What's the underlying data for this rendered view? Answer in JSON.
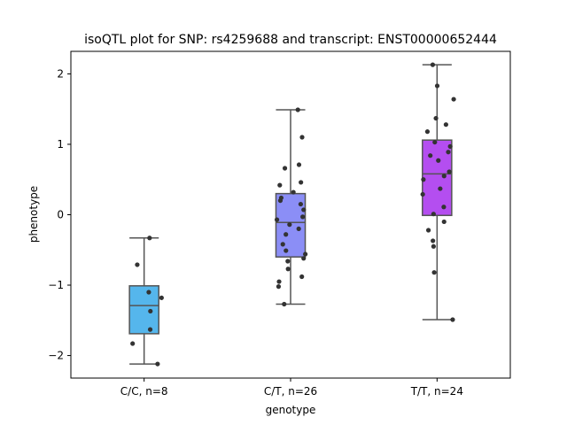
{
  "chart_data": {
    "type": "box",
    "title": "isoQTL plot for SNP: rs4259688 and transcript: ENST00000652444",
    "xlabel": "genotype",
    "ylabel": "phenotype",
    "ylim": [
      -2.32,
      2.32
    ],
    "yticks": [
      -2,
      -1,
      0,
      1,
      2
    ],
    "ytick_labels": [
      "−2",
      "−1",
      "0",
      "1",
      "2"
    ],
    "grid": false,
    "groups": [
      {
        "label": "C/C, n=8",
        "color": "#55b6ec",
        "q1": -1.69,
        "median": -1.29,
        "q3": -1.01,
        "whisker_low": -2.12,
        "whisker_high": -0.33,
        "points": [
          -0.33,
          -0.71,
          -1.1,
          -1.18,
          -1.37,
          -1.63,
          -1.83,
          -2.12
        ]
      },
      {
        "label": "C/T, n=26",
        "color": "#8b8ef6",
        "q1": -0.6,
        "median": -0.11,
        "q3": 0.3,
        "whisker_low": -1.27,
        "whisker_high": 1.49,
        "points": [
          1.49,
          1.1,
          0.71,
          0.66,
          0.46,
          0.42,
          0.32,
          0.24,
          0.2,
          0.15,
          0.07,
          -0.03,
          -0.07,
          -0.14,
          -0.2,
          -0.28,
          -0.42,
          -0.51,
          -0.56,
          -0.62,
          -0.66,
          -0.77,
          -0.88,
          -0.95,
          -1.02,
          -1.27
        ]
      },
      {
        "label": "T/T, n=24",
        "color": "#b44ef0",
        "q1": -0.01,
        "median": 0.58,
        "q3": 1.06,
        "whisker_low": -1.49,
        "whisker_high": 2.13,
        "points": [
          2.13,
          1.83,
          1.64,
          1.37,
          1.28,
          1.18,
          1.03,
          0.97,
          0.89,
          0.84,
          0.77,
          0.61,
          0.55,
          0.5,
          0.37,
          0.29,
          0.11,
          0.01,
          -0.1,
          -0.22,
          -0.37,
          -0.45,
          -0.82,
          -1.49
        ]
      }
    ]
  }
}
